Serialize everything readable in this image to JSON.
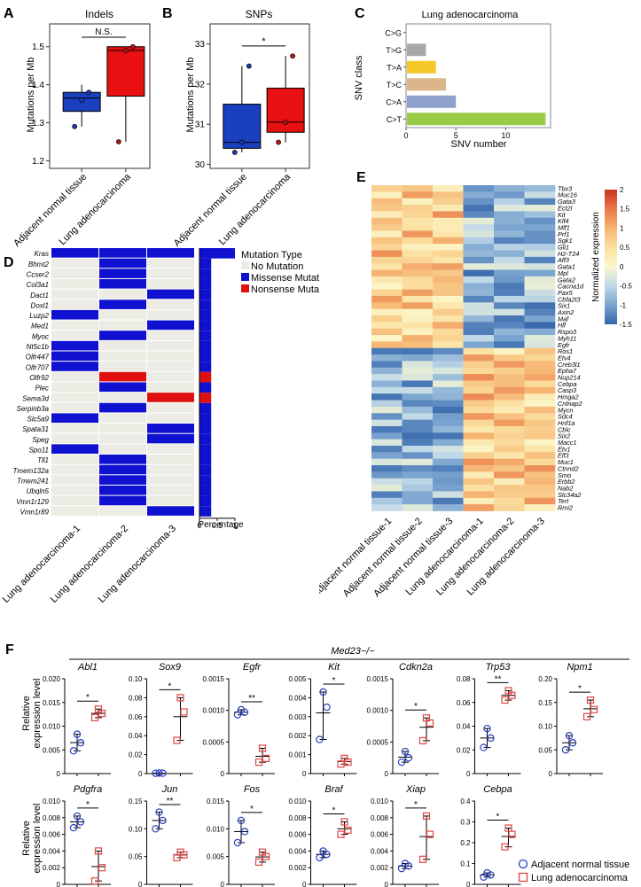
{
  "panels": {
    "A": {
      "letter": "A",
      "title": "Indels",
      "ylabel": "Mutations per Mb",
      "categories": [
        "Adjacent normal tissue",
        "Lung adenocarcinoma"
      ],
      "sig": "N.S."
    },
    "B": {
      "letter": "B",
      "title": "SNPs",
      "ylabel": "Mutations per Mb",
      "categories": [
        "Adjacent normal tissue",
        "Lung adenocarcinoma"
      ],
      "sig": "*"
    },
    "C": {
      "letter": "C",
      "title": "Lung adenocarcinoma",
      "ylabel": "SNV class",
      "xlabel": "SNV number"
    },
    "D": {
      "letter": "D",
      "legend_title": "Mutation Type",
      "legend": [
        "No Mutation",
        "Missense Mutation",
        "Nonsense Mutation"
      ],
      "pct_label": "Percentage"
    },
    "E": {
      "letter": "E",
      "colorbar_label": "Normalized expression"
    },
    "F": {
      "letter": "F",
      "genotype": "Med23−/−",
      "ylabel1": "Relative",
      "ylabel2": "expression level",
      "legend": [
        "Adjacent normal tissue",
        "Lung adenocarcinoma"
      ]
    }
  },
  "colors": {
    "normal_box": "#1a3fbf",
    "tumor_box": "#e81010",
    "missense": "#1010d0",
    "nonsense": "#e01010",
    "no_mutation": "#ecebe4",
    "normal_ring": "#2a3fbf",
    "tumor_ring": "#e04545"
  },
  "chart_data": [
    {
      "panel": "A",
      "type": "box",
      "title": "Indels",
      "ylabel": "Mutations per Mb",
      "categories": [
        "Adjacent normal tissue",
        "Lung adenocarcinoma"
      ],
      "ylim": [
        1.18,
        1.56
      ],
      "yticks": [
        1.2,
        1.3,
        1.4,
        1.5
      ],
      "boxes": [
        {
          "q1": 1.33,
          "median": 1.365,
          "q3": 1.38,
          "min": 1.29,
          "max": 1.4,
          "points": [
            1.29,
            1.36,
            1.38
          ]
        },
        {
          "q1": 1.37,
          "median": 1.49,
          "q3": 1.5,
          "min": 1.25,
          "max": 1.5,
          "points": [
            1.25,
            1.49,
            1.5
          ]
        }
      ]
    },
    {
      "panel": "B",
      "type": "box",
      "title": "SNPs",
      "ylabel": "Mutations per Mb",
      "categories": [
        "Adjacent normal tissue",
        "Lung adenocarcinoma"
      ],
      "ylim": [
        29.9,
        33.5
      ],
      "yticks": [
        30,
        31,
        32,
        33
      ],
      "boxes": [
        {
          "q1": 30.4,
          "median": 30.55,
          "q3": 31.5,
          "min": 30.3,
          "max": 32.45,
          "points": [
            30.3,
            30.55,
            32.45
          ]
        },
        {
          "q1": 30.8,
          "median": 31.05,
          "q3": 31.9,
          "min": 30.55,
          "max": 32.7,
          "points": [
            30.55,
            31.05,
            32.7
          ]
        }
      ]
    },
    {
      "panel": "C",
      "type": "bar",
      "orientation": "horizontal",
      "title": "Lung adenocarcinoma",
      "xlabel": "SNV number",
      "ylabel": "SNV class",
      "categories": [
        "C>G",
        "T>G",
        "T>A",
        "T>C",
        "C>A",
        "C>T"
      ],
      "values": [
        0,
        2,
        3,
        4,
        5,
        14
      ],
      "xlim": [
        0,
        14.5
      ],
      "xticks": [
        0,
        5,
        10
      ],
      "colors": [
        "#cccccc",
        "#a8a8a8",
        "#f5c828",
        "#dcb68a",
        "#8ea0cc",
        "#98cc48"
      ]
    },
    {
      "panel": "D",
      "type": "heatmap",
      "columns": [
        "Lung adenocarcinoma-1",
        "Lung adenocarcinoma-2",
        "Lung adenocarcinoma-3"
      ],
      "genes": [
        "Kras",
        "Bhmt2",
        "Ccser2",
        "Col3a1",
        "Dact1",
        "Doxl1",
        "Luzp2",
        "Med1",
        "Myoc",
        "Nt5c1b",
        "Olfr447",
        "Olfr707",
        "Olfr92",
        "Plec",
        "Sema3d",
        "Serpinb3a",
        "Slc5a9",
        "Spata31",
        "Speg",
        "Spo11",
        "Tll1",
        "Tmem132a",
        "Tmem241",
        "Ubqln5",
        "Vmn1r129",
        "Vmn1r89"
      ],
      "matrix": [
        [
          1,
          1,
          1
        ],
        [
          0,
          1,
          0
        ],
        [
          0,
          1,
          0
        ],
        [
          0,
          1,
          0
        ],
        [
          0,
          0,
          1
        ],
        [
          0,
          1,
          0
        ],
        [
          1,
          0,
          0
        ],
        [
          0,
          0,
          1
        ],
        [
          0,
          1,
          0
        ],
        [
          1,
          0,
          0
        ],
        [
          1,
          0,
          0
        ],
        [
          1,
          0,
          0
        ],
        [
          0,
          2,
          0
        ],
        [
          0,
          1,
          0
        ],
        [
          0,
          0,
          2
        ],
        [
          0,
          1,
          0
        ],
        [
          1,
          0,
          0
        ],
        [
          0,
          0,
          1
        ],
        [
          0,
          0,
          1
        ],
        [
          1,
          0,
          0
        ],
        [
          0,
          1,
          0
        ],
        [
          0,
          1,
          0
        ],
        [
          0,
          1,
          0
        ],
        [
          0,
          1,
          0
        ],
        [
          0,
          1,
          0
        ],
        [
          0,
          0,
          1
        ]
      ],
      "percentage": [
        1.0,
        0.33,
        0.33,
        0.33,
        0.33,
        0.33,
        0.33,
        0.33,
        0.33,
        0.33,
        0.33,
        0.33,
        0.33,
        0.33,
        0.33,
        0.33,
        0.33,
        0.33,
        0.33,
        0.33,
        0.33,
        0.33,
        0.33,
        0.33,
        0.33,
        0.33
      ],
      "percentage_ticks": [
        "0",
        "0.5",
        "1"
      ]
    },
    {
      "panel": "E",
      "type": "heatmap",
      "columns": [
        "Adjacent normal tissue-1",
        "Adjacent normal tissue-2",
        "Adjacent normal tissue-3",
        "Lung adenocarcinoma-1",
        "Lung adenocarcinoma-2",
        "Lung adenocarcinoma-3"
      ],
      "genes": [
        "Tbx3",
        "Muc16",
        "Gata3",
        "Ect2l",
        "Kit",
        "Klf4",
        "Mlf1",
        "Prf1",
        "Sgk1",
        "Gli1",
        "H2-T24",
        "Aff3",
        "Gata1",
        "Mpl",
        "Gata2",
        "Cacna1d",
        "Pax5",
        "Cbfa2t3",
        "Six1",
        "Axin2",
        "Maf",
        "Hlf",
        "Rspo3",
        "Myh11",
        "Egfr",
        "Ros1",
        "Etv4",
        "Creb3l1",
        "Epha7",
        "Nup214",
        "Cebpa",
        "Casp3",
        "Hmga2",
        "Cntnap2",
        "Mycn",
        "Sdc4",
        "Hnf1a",
        "Cblc",
        "Six2",
        "Macc1",
        "Etv1",
        "Elf3",
        "Muc1",
        "Ctnnd2",
        "Smo",
        "Erbb2",
        "Nab2",
        "Slc34a2",
        "Tert",
        "Rmi2"
      ],
      "color_range": [
        -1.5,
        2
      ],
      "colorbar_ticks": [
        "2",
        "1.5",
        "1",
        "0.5",
        "0",
        "-0.5",
        "-1",
        "-1.5"
      ]
    },
    {
      "panel": "F",
      "type": "scatter",
      "ylabel": "Relative expression level",
      "groups": [
        "Adjacent normal tissue",
        "Lung adenocarcinoma"
      ],
      "genes": [
        {
          "name": "Abl1",
          "ylim": [
            0,
            0.02
          ],
          "yticks": [
            "0",
            "0.005",
            "0.010",
            "0.015",
            "0.020"
          ],
          "sig": "*",
          "normal": [
            0.0048,
            0.0065,
            0.0083
          ],
          "tumor": [
            0.0118,
            0.0127,
            0.0136
          ]
        },
        {
          "name": "Sox9",
          "ylim": [
            0,
            0.1
          ],
          "yticks": [
            "0",
            "0.02",
            "0.04",
            "0.06",
            "0.08",
            "0.10"
          ],
          "sig": "*",
          "normal": [
            0.0003,
            0.0004,
            0.0005
          ],
          "tumor": [
            0.035,
            0.065,
            0.08
          ]
        },
        {
          "name": "Egfr",
          "ylim": [
            0,
            0.0015
          ],
          "yticks": [
            "0",
            "0.0005",
            "0.0010",
            "0.0015"
          ],
          "sig": "**",
          "normal": [
            0.00093,
            0.00097,
            0.00101
          ],
          "tumor": [
            0.00018,
            0.00024,
            0.0004
          ]
        },
        {
          "name": "Kit",
          "ylim": [
            0,
            0.005
          ],
          "yticks": [
            "0",
            "0.001",
            "0.002",
            "0.003",
            "0.004",
            "0.005"
          ],
          "sig": "*",
          "normal": [
            0.0018,
            0.0035,
            0.0043
          ],
          "tumor": [
            0.0005,
            0.0006,
            0.0008
          ]
        },
        {
          "name": "Cdkn2a",
          "ylim": [
            0,
            0.0015
          ],
          "yticks": [
            "0",
            "0.0005",
            "0.0010",
            "0.0015"
          ],
          "sig": "*",
          "normal": [
            0.00018,
            0.00025,
            0.00035
          ],
          "tumor": [
            0.00052,
            0.0008,
            0.00088
          ]
        },
        {
          "name": "Trp53",
          "ylim": [
            0,
            0.08
          ],
          "yticks": [
            "0",
            "0.02",
            "0.04",
            "0.06",
            "0.08"
          ],
          "sig": "**",
          "normal": [
            0.022,
            0.03,
            0.038
          ],
          "tumor": [
            0.062,
            0.066,
            0.07
          ]
        },
        {
          "name": "Npm1",
          "ylim": [
            0,
            0.2
          ],
          "yticks": [
            "0",
            "0.05",
            "0.10",
            "0.15",
            "0.20"
          ],
          "sig": "*",
          "normal": [
            0.05,
            0.065,
            0.08
          ],
          "tumor": [
            0.12,
            0.135,
            0.155
          ]
        },
        {
          "name": "Pdgfra",
          "ylim": [
            0,
            0.01
          ],
          "yticks": [
            "0",
            "0.002",
            "0.004",
            "0.006",
            "0.008",
            "0.010"
          ],
          "sig": "*",
          "normal": [
            0.0068,
            0.0075,
            0.0082
          ],
          "tumor": [
            0.0004,
            0.002,
            0.004
          ]
        },
        {
          "name": "Jun",
          "ylim": [
            0,
            0.15
          ],
          "yticks": [
            "0",
            "0.05",
            "0.10",
            "0.15"
          ],
          "sig": "**",
          "normal": [
            0.1,
            0.115,
            0.13
          ],
          "tumor": [
            0.048,
            0.053,
            0.058
          ]
        },
        {
          "name": "Fos",
          "ylim": [
            0,
            0.015
          ],
          "yticks": [
            "0",
            "0.005",
            "0.010",
            "0.015"
          ],
          "sig": "*",
          "normal": [
            0.0075,
            0.0095,
            0.0115
          ],
          "tumor": [
            0.004,
            0.005,
            0.0058
          ]
        },
        {
          "name": "Braf",
          "ylim": [
            0,
            0.01
          ],
          "yticks": [
            "0",
            "0.002",
            "0.004",
            "0.006",
            "0.008",
            "0.010"
          ],
          "sig": "*",
          "normal": [
            0.0032,
            0.0036,
            0.004
          ],
          "tumor": [
            0.006,
            0.0065,
            0.0075
          ]
        },
        {
          "name": "Xiap",
          "ylim": [
            0,
            0.01
          ],
          "yticks": [
            "0",
            "0.002",
            "0.004",
            "0.006",
            "0.008",
            "0.010"
          ],
          "sig": "*",
          "normal": [
            0.0019,
            0.0022,
            0.0025
          ],
          "tumor": [
            0.003,
            0.006,
            0.0082
          ]
        },
        {
          "name": "Cebpa",
          "ylim": [
            0,
            0.4
          ],
          "yticks": [
            "0",
            "0.1",
            "0.2",
            "0.3",
            "0.4"
          ],
          "sig": "*",
          "normal": [
            0.035,
            0.045,
            0.055
          ],
          "tumor": [
            0.18,
            0.24,
            0.27
          ]
        }
      ]
    }
  ]
}
